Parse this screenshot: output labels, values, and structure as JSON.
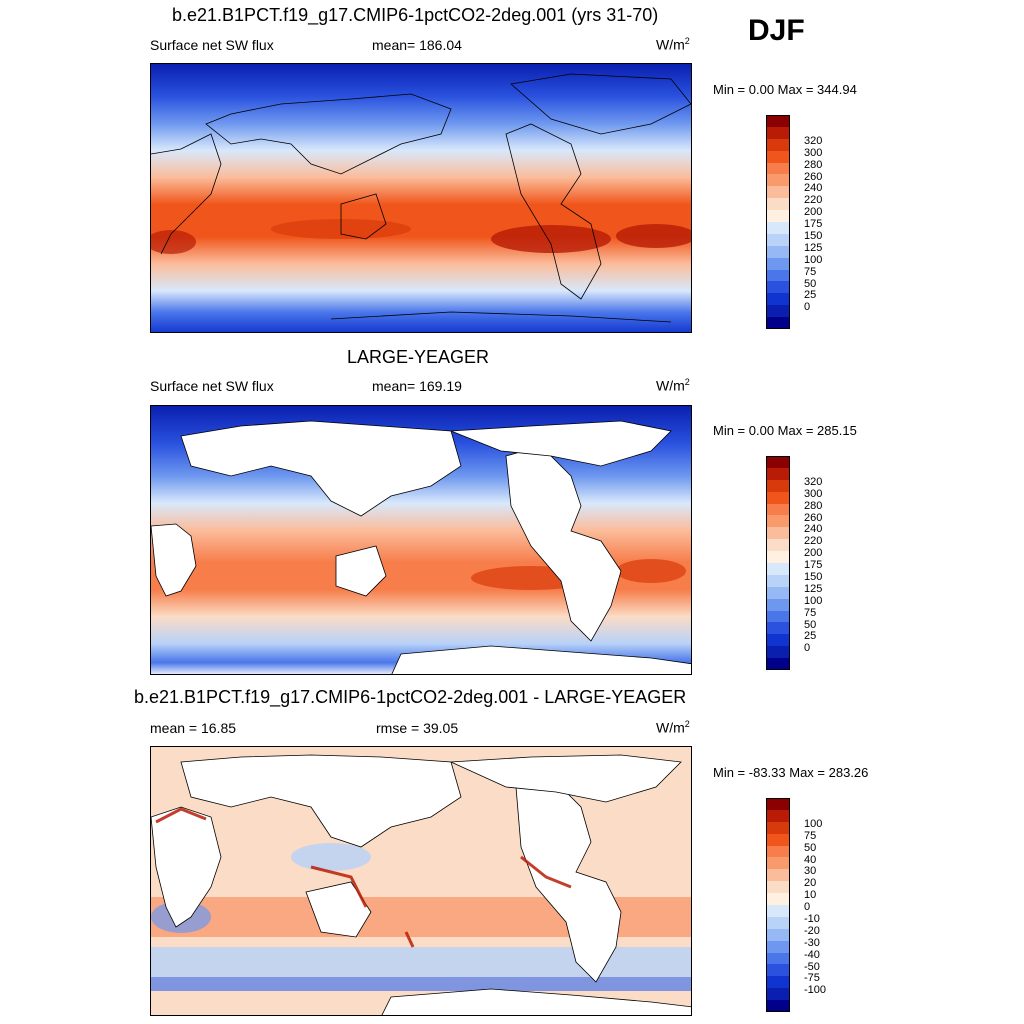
{
  "season": "DJF",
  "panels": [
    {
      "title": "b.e21.B1PCT.f19_g17.CMIP6-1pctCO2-2deg.001 (yrs 31-70)",
      "left_label": "Surface net SW flux",
      "center_label": "mean= 186.04",
      "units": "W/m",
      "units_sup": "2",
      "min_max": "Min =   0.00 Max = 344.94",
      "land_masked": false,
      "colorbar": {
        "colors": [
          "#8b0000",
          "#b81c06",
          "#d93a0c",
          "#f0561b",
          "#f77d4a",
          "#f99a6c",
          "#fbbc9b",
          "#fbdcc6",
          "#fff0e2",
          "#d8e8fb",
          "#b8d2f8",
          "#96b8f5",
          "#6e98ef",
          "#4a76ea",
          "#2a52df",
          "#1034cf",
          "#0a1fb0",
          "#00008b"
        ],
        "labels": [
          "320",
          "300",
          "280",
          "260",
          "240",
          "220",
          "200",
          "175",
          "150",
          "125",
          "100",
          "75",
          "50",
          "25",
          "0"
        ]
      }
    },
    {
      "title": "LARGE-YEAGER",
      "left_label": "Surface net SW flux",
      "center_label": "mean= 169.19",
      "units": "W/m",
      "units_sup": "2",
      "min_max": "Min =   0.00 Max = 285.15",
      "land_masked": true,
      "colorbar": {
        "colors": [
          "#8b0000",
          "#b81c06",
          "#d93a0c",
          "#f0561b",
          "#f77d4a",
          "#f99a6c",
          "#fbbc9b",
          "#fbdcc6",
          "#fff0e2",
          "#d8e8fb",
          "#b8d2f8",
          "#96b8f5",
          "#6e98ef",
          "#4a76ea",
          "#2a52df",
          "#1034cf",
          "#0a1fb0",
          "#00008b"
        ],
        "labels": [
          "320",
          "300",
          "280",
          "260",
          "240",
          "220",
          "200",
          "175",
          "150",
          "125",
          "100",
          "75",
          "50",
          "25",
          "0"
        ]
      }
    },
    {
      "title": "b.e21.B1PCT.f19_g17.CMIP6-1pctCO2-2deg.001 - LARGE-YEAGER",
      "left_label": "mean =  16.85",
      "center_label": "rmse =  39.05",
      "units": "W/m",
      "units_sup": "2",
      "min_max": "Min = -83.33 Max = 283.26",
      "land_masked": true,
      "colorbar": {
        "colors": [
          "#8b0000",
          "#b81c06",
          "#d93a0c",
          "#f0561b",
          "#f77d4a",
          "#f99a6c",
          "#fbbc9b",
          "#fbdcc6",
          "#fff0e2",
          "#d8e8fb",
          "#b8d2f8",
          "#96b8f5",
          "#6e98ef",
          "#4a76ea",
          "#2a52df",
          "#1034cf",
          "#0a1fb0",
          "#00008b"
        ],
        "labels": [
          "100",
          "75",
          "50",
          "40",
          "30",
          "20",
          "10",
          "0",
          "-10",
          "-20",
          "-30",
          "-40",
          "-50",
          "-75",
          "-100"
        ]
      }
    }
  ]
}
